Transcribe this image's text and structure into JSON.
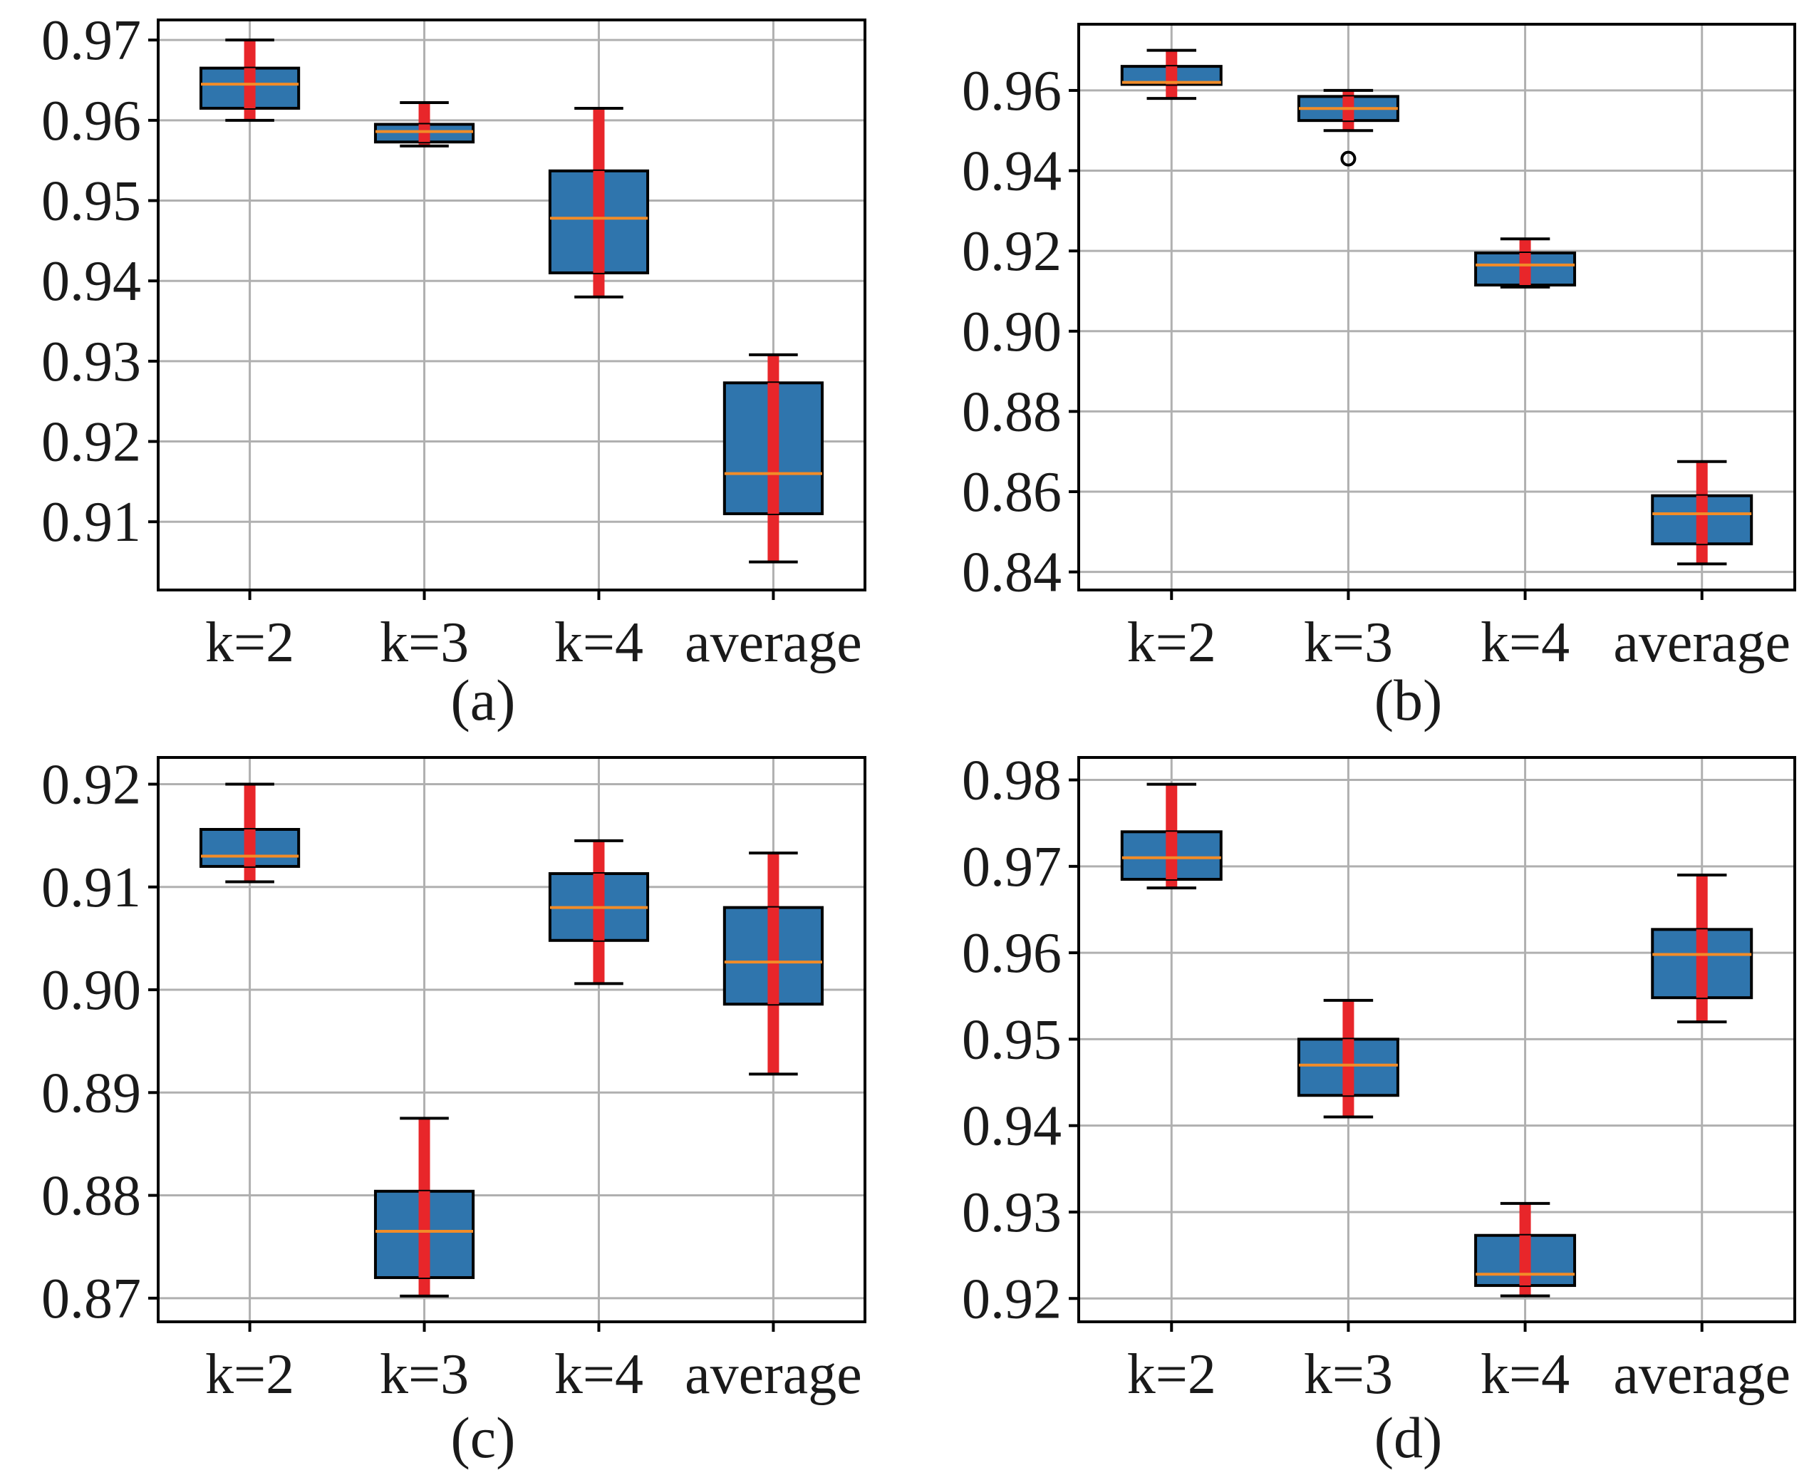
{
  "chart_data": [
    {
      "type": "box",
      "caption": "(a)",
      "categories": [
        "k=2",
        "k=3",
        "k=4",
        "average"
      ],
      "ylim": [
        0.9015,
        0.9725
      ],
      "yticks": [
        "0.97",
        "0.96",
        "0.95",
        "0.94",
        "0.93",
        "0.92",
        "0.91"
      ],
      "ytick_values": [
        0.97,
        0.96,
        0.95,
        0.94,
        0.93,
        0.92,
        0.91
      ],
      "grid": true,
      "boxes": [
        {
          "whislo": 0.96,
          "q1": 0.9615,
          "med": 0.9645,
          "q3": 0.9665,
          "whishi": 0.97,
          "fliers": []
        },
        {
          "whislo": 0.9568,
          "q1": 0.9573,
          "med": 0.9586,
          "q3": 0.9595,
          "whishi": 0.9622,
          "fliers": []
        },
        {
          "whislo": 0.938,
          "q1": 0.941,
          "med": 0.9478,
          "q3": 0.9537,
          "whishi": 0.9615,
          "fliers": []
        },
        {
          "whislo": 0.905,
          "q1": 0.911,
          "med": 0.916,
          "q3": 0.9273,
          "whishi": 0.9308,
          "fliers": []
        }
      ]
    },
    {
      "type": "box",
      "caption": "(b)",
      "categories": [
        "k=2",
        "k=3",
        "k=4",
        "average"
      ],
      "ylim": [
        0.8355,
        0.9765
      ],
      "yticks": [
        "0.96",
        "0.94",
        "0.92",
        "0.90",
        "0.88",
        "0.86",
        "0.84"
      ],
      "ytick_values": [
        0.96,
        0.94,
        0.92,
        0.9,
        0.88,
        0.86,
        0.84
      ],
      "grid": true,
      "boxes": [
        {
          "whislo": 0.958,
          "q1": 0.9615,
          "med": 0.962,
          "q3": 0.966,
          "whishi": 0.97,
          "fliers": []
        },
        {
          "whislo": 0.95,
          "q1": 0.9525,
          "med": 0.9555,
          "q3": 0.9585,
          "whishi": 0.96,
          "fliers": [
            0.943
          ]
        },
        {
          "whislo": 0.911,
          "q1": 0.9115,
          "med": 0.9165,
          "q3": 0.9195,
          "whishi": 0.923,
          "fliers": []
        },
        {
          "whislo": 0.842,
          "q1": 0.847,
          "med": 0.8545,
          "q3": 0.859,
          "whishi": 0.8675,
          "fliers": []
        }
      ]
    },
    {
      "type": "box",
      "caption": "(c)",
      "categories": [
        "k=2",
        "k=3",
        "k=4",
        "average"
      ],
      "ylim": [
        0.8677,
        0.9226
      ],
      "yticks": [
        "0.92",
        "0.91",
        "0.90",
        "0.89",
        "0.88",
        "0.87"
      ],
      "ytick_values": [
        0.92,
        0.91,
        0.9,
        0.89,
        0.88,
        0.87
      ],
      "grid": true,
      "boxes": [
        {
          "whislo": 0.9105,
          "q1": 0.912,
          "med": 0.913,
          "q3": 0.9156,
          "whishi": 0.92,
          "fliers": []
        },
        {
          "whislo": 0.8702,
          "q1": 0.872,
          "med": 0.8765,
          "q3": 0.8804,
          "whishi": 0.8875,
          "fliers": []
        },
        {
          "whislo": 0.9006,
          "q1": 0.9048,
          "med": 0.908,
          "q3": 0.9113,
          "whishi": 0.9145,
          "fliers": []
        },
        {
          "whislo": 0.8918,
          "q1": 0.8986,
          "med": 0.9027,
          "q3": 0.908,
          "whishi": 0.9133,
          "fliers": []
        }
      ]
    },
    {
      "type": "box",
      "caption": "(d)",
      "categories": [
        "k=2",
        "k=3",
        "k=4",
        "average"
      ],
      "ylim": [
        0.9173,
        0.9826
      ],
      "yticks": [
        "0.98",
        "0.97",
        "0.96",
        "0.95",
        "0.94",
        "0.93",
        "0.92"
      ],
      "ytick_values": [
        0.98,
        0.97,
        0.96,
        0.95,
        0.94,
        0.93,
        0.92
      ],
      "grid": true,
      "boxes": [
        {
          "whislo": 0.9675,
          "q1": 0.9685,
          "med": 0.971,
          "q3": 0.974,
          "whishi": 0.9795,
          "fliers": []
        },
        {
          "whislo": 0.941,
          "q1": 0.9435,
          "med": 0.947,
          "q3": 0.95,
          "whishi": 0.9545,
          "fliers": []
        },
        {
          "whislo": 0.9203,
          "q1": 0.9215,
          "med": 0.9228,
          "q3": 0.9273,
          "whishi": 0.931,
          "fliers": []
        },
        {
          "whislo": 0.952,
          "q1": 0.9548,
          "med": 0.9598,
          "q3": 0.9627,
          "whishi": 0.969,
          "fliers": []
        }
      ]
    }
  ],
  "colors": {
    "box_fill": "#2f75ad",
    "box_edge": "#000000",
    "median": "#f28c28",
    "whisker": "#e8262a",
    "grid": "#b0b0b0",
    "axis": "#000000"
  }
}
